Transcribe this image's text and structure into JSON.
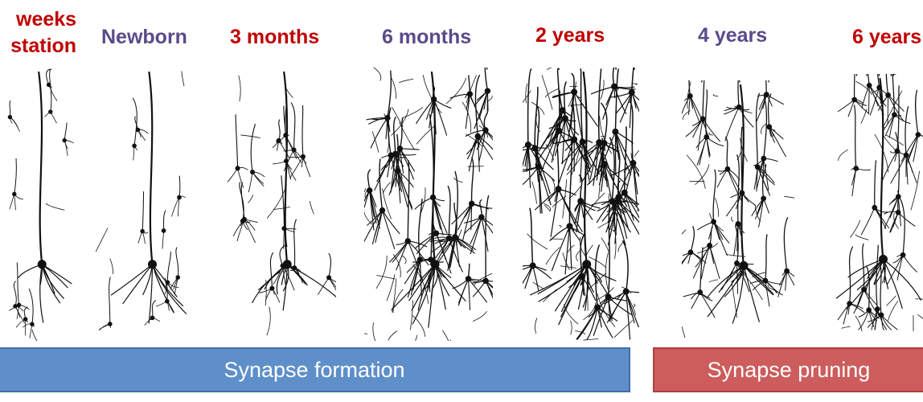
{
  "stages": [
    {
      "id": "gestation",
      "lines": [
        "weeks",
        "station"
      ],
      "color": "#c00000"
    },
    {
      "id": "newborn",
      "lines": [
        "Newborn"
      ],
      "color": "#5b4a8a"
    },
    {
      "id": "3-months",
      "lines": [
        "3 months"
      ],
      "color": "#c00000"
    },
    {
      "id": "6-months",
      "lines": [
        "6 months"
      ],
      "color": "#5b4a8a"
    },
    {
      "id": "2-years",
      "lines": [
        "2 years"
      ],
      "color": "#c00000"
    },
    {
      "id": "4-years",
      "lines": [
        "4 years"
      ],
      "color": "#5b4a8a"
    },
    {
      "id": "6-years",
      "lines": [
        "6 years"
      ],
      "color": "#c00000"
    }
  ],
  "bars": {
    "formation": {
      "label": "Synapse formation",
      "color": "#5e8fc9"
    },
    "pruning": {
      "label": "Synapse pruning",
      "color": "#cd5c5c"
    }
  },
  "panels": [
    {
      "id": "gestation",
      "density": 0.15
    },
    {
      "id": "newborn",
      "density": 0.2
    },
    {
      "id": "3-months",
      "density": 0.35
    },
    {
      "id": "6-months",
      "density": 0.8
    },
    {
      "id": "2-years",
      "density": 1.0
    },
    {
      "id": "4-years",
      "density": 0.6
    },
    {
      "id": "6-years",
      "density": 0.55
    }
  ]
}
